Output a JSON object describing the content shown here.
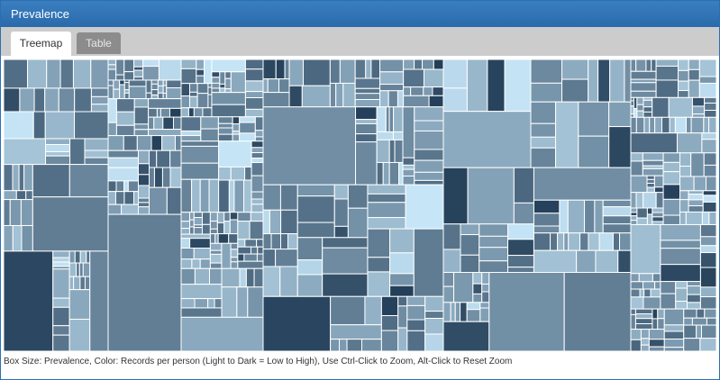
{
  "window": {
    "title": "Prevalence"
  },
  "tabs": [
    {
      "label": "Treemap",
      "active": true
    },
    {
      "label": "Table",
      "active": false
    }
  ],
  "caption": "Box Size: Prevalence, Color: Records per person (Light to Dark = Low to High), Use Ctrl-Click to Zoom, Alt-Click to Reset Zoom",
  "colors": {
    "title_bar": "#2f73b5",
    "tab_bar": "#cccccc",
    "scale_light": "#c6e6f8",
    "scale_dark": "#223d57"
  }
}
